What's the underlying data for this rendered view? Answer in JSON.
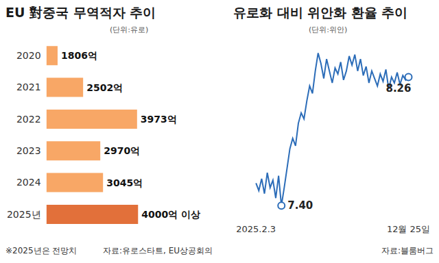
{
  "chart_data": [
    {
      "type": "bar",
      "title": "EU 對중국 무역적자 추이",
      "subtitle": "(단위:유로)",
      "categories": [
        "2020",
        "2021",
        "2022",
        "2023",
        "2024",
        "2025년"
      ],
      "values": [
        1806,
        2502,
        3973,
        2970,
        3045,
        4000
      ],
      "value_labels": [
        "1806억",
        "2502억",
        "3973억",
        "2970억",
        "3045억",
        "4000억 이상"
      ],
      "colors": [
        "#f8a766",
        "#f8a766",
        "#f8a766",
        "#f8a766",
        "#f8a766",
        "#e2703a"
      ],
      "orientation": "horizontal",
      "data_labels": true,
      "tick_labels": "y",
      "grid": false,
      "xlim": [
        1500,
        4500
      ],
      "notes": "※2025년은 전망치",
      "source": "자료:유로스타트, EU상공회의"
    },
    {
      "type": "line",
      "title": "유로화 대비 위안화 환율 추이",
      "subtitle": "(단위:위안)",
      "categories": [
        "2025.2.3",
        null,
        null,
        null,
        null,
        null,
        null,
        null,
        null,
        null,
        null,
        null,
        null,
        null,
        null,
        null,
        null,
        null,
        null,
        null,
        null,
        null,
        null,
        null,
        null,
        null,
        null,
        null,
        null,
        null,
        null,
        null,
        null,
        null,
        null,
        null,
        null,
        null,
        null,
        null,
        null,
        null,
        null,
        null,
        null,
        null,
        null,
        null,
        null,
        null,
        null,
        null,
        null,
        null,
        "12월 25일"
      ],
      "values": [
        7.55,
        7.5,
        7.58,
        7.48,
        7.62,
        7.52,
        7.57,
        7.45,
        7.6,
        7.4,
        7.52,
        7.65,
        7.78,
        7.85,
        7.8,
        7.95,
        8.02,
        7.98,
        8.1,
        8.2,
        8.15,
        8.3,
        8.42,
        8.35,
        8.25,
        8.38,
        8.3,
        8.22,
        8.32,
        8.28,
        8.36,
        8.24,
        8.3,
        8.4,
        8.34,
        8.41,
        8.3,
        8.38,
        8.27,
        8.33,
        8.22,
        8.3,
        8.25,
        8.2,
        8.28,
        8.23,
        8.31,
        8.18,
        8.26,
        8.22,
        8.29,
        8.21,
        8.27,
        8.24,
        8.26
      ],
      "value_labels": [
        null,
        null,
        null,
        null,
        null,
        null,
        null,
        null,
        null,
        "7.40",
        null,
        null,
        null,
        null,
        null,
        null,
        null,
        null,
        null,
        null,
        null,
        null,
        null,
        null,
        null,
        null,
        null,
        null,
        null,
        null,
        null,
        null,
        null,
        null,
        null,
        null,
        null,
        null,
        null,
        null,
        null,
        null,
        null,
        null,
        null,
        null,
        null,
        null,
        null,
        null,
        null,
        null,
        null,
        null,
        "8.26"
      ],
      "color": "#2b6cb8",
      "marker": "circle",
      "tick_labels": "x",
      "grid": false,
      "ylim": [
        7.3,
        8.5
      ],
      "source": "자료:블룸버그"
    }
  ]
}
